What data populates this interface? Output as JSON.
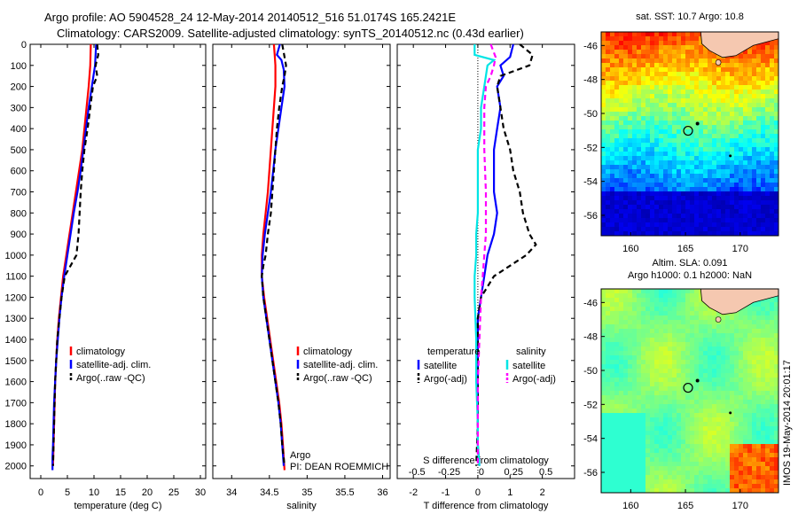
{
  "header": {
    "line1": "Argo profile: AO 5904528_24 12-May-2014 20140512_516 51.0174S 165.2421E",
    "line2": "Climatology: CARS2009. Satellite-adjusted climatology: synTS_20140512.nc (0.43d earlier)"
  },
  "colors": {
    "climatology": "#ff0000",
    "satellite": "#0000ff",
    "argo": "#000000",
    "cyan": "#00e5e5",
    "magenta": "#ff00ff"
  },
  "chart_data": [
    {
      "type": "line",
      "xlabel": "temperature (deg C)",
      "xlim": [
        -2,
        31
      ],
      "ylim": [
        2060,
        0
      ],
      "xticks": [
        0,
        5,
        10,
        15,
        20,
        25,
        30
      ],
      "yticks": [
        0,
        100,
        200,
        300,
        400,
        500,
        600,
        700,
        800,
        900,
        1000,
        1100,
        1200,
        1300,
        1400,
        1500,
        1600,
        1700,
        1800,
        1900,
        2000
      ],
      "legend": [
        "climatology",
        "satellite-adj. clim.",
        "Argo(..raw -QC)"
      ],
      "series": [
        {
          "name": "climatology",
          "color": "#ff0000",
          "dash": "",
          "points": [
            [
              9.4,
              0
            ],
            [
              9.3,
              100
            ],
            [
              9.0,
              200
            ],
            [
              8.6,
              300
            ],
            [
              8.2,
              400
            ],
            [
              7.8,
              500
            ],
            [
              7.2,
              600
            ],
            [
              6.6,
              700
            ],
            [
              6.0,
              800
            ],
            [
              5.4,
              900
            ],
            [
              4.8,
              1000
            ],
            [
              4.2,
              1100
            ],
            [
              3.8,
              1200
            ],
            [
              3.4,
              1300
            ],
            [
              3.1,
              1400
            ],
            [
              2.9,
              1500
            ],
            [
              2.7,
              1600
            ],
            [
              2.6,
              1700
            ],
            [
              2.5,
              1800
            ],
            [
              2.4,
              1900
            ],
            [
              2.3,
              2000
            ]
          ]
        },
        {
          "name": "satellite-adj. clim.",
          "color": "#0000ff",
          "dash": "",
          "points": [
            [
              10.4,
              0
            ],
            [
              10.2,
              100
            ],
            [
              9.6,
              200
            ],
            [
              9.0,
              300
            ],
            [
              8.5,
              400
            ],
            [
              8.0,
              500
            ],
            [
              7.5,
              600
            ],
            [
              6.9,
              700
            ],
            [
              6.2,
              800
            ],
            [
              5.6,
              900
            ],
            [
              5.0,
              1000
            ],
            [
              4.4,
              1100
            ],
            [
              3.9,
              1200
            ],
            [
              3.5,
              1300
            ],
            [
              3.2,
              1400
            ],
            [
              2.9,
              1500
            ],
            [
              2.7,
              1600
            ],
            [
              2.5,
              1700
            ],
            [
              2.4,
              1800
            ],
            [
              2.3,
              1900
            ],
            [
              2.2,
              1960
            ],
            [
              2.2,
              2020
            ]
          ]
        },
        {
          "name": "Argo(..raw -QC)",
          "color": "#000000",
          "dash": "6,4",
          "points": [
            [
              10.6,
              0
            ],
            [
              10.8,
              50
            ],
            [
              10.3,
              100
            ],
            [
              10.6,
              150
            ],
            [
              9.8,
              200
            ],
            [
              9.3,
              300
            ],
            [
              8.8,
              400
            ],
            [
              8.2,
              500
            ],
            [
              7.8,
              600
            ],
            [
              7.5,
              700
            ],
            [
              7.3,
              800
            ],
            [
              7.1,
              900
            ],
            [
              6.7,
              1000
            ],
            [
              5.6,
              1050
            ],
            [
              4.5,
              1100
            ],
            [
              3.9,
              1200
            ],
            [
              3.5,
              1300
            ],
            [
              3.1,
              1400
            ],
            [
              2.9,
              1500
            ],
            [
              2.7,
              1600
            ],
            [
              2.6,
              1700
            ],
            [
              2.5,
              1800
            ],
            [
              2.4,
              1900
            ],
            [
              2.3,
              2000
            ]
          ]
        }
      ]
    },
    {
      "type": "line",
      "xlabel": "salinity",
      "xlim": [
        33.75,
        36.1
      ],
      "ylim": [
        2060,
        0
      ],
      "xticks": [
        34,
        34.5,
        35,
        35.5,
        36
      ],
      "legend": [
        "climatology",
        "satellite-adj. clim.",
        "Argo(..raw -QC)"
      ],
      "annotation": [
        "Argo",
        "PI: DEAN ROEMMICH"
      ],
      "series": [
        {
          "name": "climatology",
          "color": "#ff0000",
          "dash": "",
          "points": [
            [
              34.56,
              0
            ],
            [
              34.57,
              50
            ],
            [
              34.58,
              100
            ],
            [
              34.58,
              200
            ],
            [
              34.56,
              300
            ],
            [
              34.54,
              400
            ],
            [
              34.52,
              500
            ],
            [
              34.5,
              600
            ],
            [
              34.48,
              700
            ],
            [
              34.45,
              800
            ],
            [
              34.42,
              900
            ],
            [
              34.4,
              1000
            ],
            [
              34.4,
              1100
            ],
            [
              34.43,
              1200
            ],
            [
              34.47,
              1300
            ],
            [
              34.51,
              1400
            ],
            [
              34.55,
              1500
            ],
            [
              34.59,
              1600
            ],
            [
              34.63,
              1700
            ],
            [
              34.66,
              1800
            ],
            [
              34.68,
              1900
            ],
            [
              34.7,
              2020
            ]
          ]
        },
        {
          "name": "satellite-adj. clim.",
          "color": "#0000ff",
          "dash": "",
          "points": [
            [
              34.64,
              0
            ],
            [
              34.6,
              50
            ],
            [
              34.66,
              75
            ],
            [
              34.69,
              120
            ],
            [
              34.7,
              200
            ],
            [
              34.66,
              300
            ],
            [
              34.62,
              400
            ],
            [
              34.58,
              500
            ],
            [
              34.55,
              600
            ],
            [
              34.52,
              700
            ],
            [
              34.48,
              800
            ],
            [
              34.44,
              900
            ],
            [
              34.41,
              1000
            ],
            [
              34.4,
              1100
            ],
            [
              34.42,
              1200
            ],
            [
              34.46,
              1300
            ],
            [
              34.5,
              1400
            ],
            [
              34.54,
              1500
            ],
            [
              34.58,
              1600
            ],
            [
              34.62,
              1700
            ],
            [
              34.65,
              1800
            ],
            [
              34.67,
              1900
            ],
            [
              34.69,
              2000
            ]
          ]
        },
        {
          "name": "Argo(..raw -QC)",
          "color": "#000000",
          "dash": "6,4",
          "points": [
            [
              34.67,
              0
            ],
            [
              34.7,
              60
            ],
            [
              34.72,
              100
            ],
            [
              34.7,
              150
            ],
            [
              34.67,
              200
            ],
            [
              34.63,
              300
            ],
            [
              34.6,
              400
            ],
            [
              34.58,
              500
            ],
            [
              34.56,
              600
            ],
            [
              34.54,
              700
            ],
            [
              34.52,
              800
            ],
            [
              34.48,
              900
            ],
            [
              34.45,
              1000
            ],
            [
              34.42,
              1050
            ],
            [
              34.4,
              1100
            ],
            [
              34.42,
              1200
            ],
            [
              34.46,
              1300
            ],
            [
              34.5,
              1400
            ],
            [
              34.54,
              1500
            ],
            [
              34.58,
              1600
            ],
            [
              34.62,
              1700
            ],
            [
              34.65,
              1800
            ],
            [
              34.67,
              1900
            ],
            [
              34.7,
              2000
            ]
          ]
        }
      ]
    },
    {
      "type": "line",
      "xlabel": "T difference from climatology",
      "secondary_xlabel": "S difference from climatology",
      "xlim": [
        -2.5,
        3
      ],
      "ylim": [
        2060,
        0
      ],
      "xticks": [
        -2,
        -1,
        0,
        1,
        2
      ],
      "xticklabels_top": [
        "-0.5",
        "-0.25",
        "0",
        "0.25",
        "0.5"
      ],
      "legend": {
        "temperature": "temperature",
        "salinity": "salinity",
        "entries": [
          "satellite",
          "Argo(-adj)",
          "satellite",
          "Argo(-adj)"
        ]
      },
      "series": [
        {
          "name": "satellite",
          "group": "temperature",
          "color": "#0000ff",
          "dash": "",
          "points": [
            [
              1.1,
              0
            ],
            [
              1.0,
              60
            ],
            [
              0.7,
              100
            ],
            [
              0.8,
              150
            ],
            [
              0.6,
              200
            ],
            [
              0.7,
              300
            ],
            [
              0.6,
              400
            ],
            [
              0.5,
              500
            ],
            [
              0.5,
              600
            ],
            [
              0.5,
              700
            ],
            [
              0.6,
              800
            ],
            [
              0.5,
              900
            ],
            [
              0.3,
              1000
            ],
            [
              0.2,
              1100
            ],
            [
              0.1,
              1200
            ],
            [
              0.0,
              1300
            ],
            [
              0.0,
              1400
            ],
            [
              0.0,
              1500
            ],
            [
              0.0,
              1600
            ],
            [
              0.0,
              1800
            ],
            [
              0.0,
              1900
            ],
            [
              0.05,
              2000
            ]
          ]
        },
        {
          "name": "Argo(-adj)",
          "group": "temperature",
          "color": "#000000",
          "dash": "6,4",
          "points": [
            [
              1.3,
              0
            ],
            [
              1.7,
              50
            ],
            [
              1.6,
              100
            ],
            [
              0.7,
              150
            ],
            [
              0.6,
              200
            ],
            [
              0.7,
              300
            ],
            [
              0.8,
              400
            ],
            [
              1.0,
              500
            ],
            [
              1.1,
              600
            ],
            [
              1.3,
              700
            ],
            [
              1.4,
              800
            ],
            [
              1.6,
              900
            ],
            [
              1.8,
              950
            ],
            [
              1.5,
              1000
            ],
            [
              0.5,
              1100
            ],
            [
              0.1,
              1200
            ],
            [
              0.0,
              1300
            ],
            [
              0.0,
              1500
            ],
            [
              0.0,
              1800
            ],
            [
              -0.05,
              2000
            ]
          ]
        },
        {
          "name": "satellite",
          "group": "salinity",
          "color": "#00e5e5",
          "dash": "",
          "points": [
            [
              -0.1,
              0
            ],
            [
              -0.1,
              50
            ],
            [
              0.5,
              75
            ],
            [
              0.3,
              100
            ],
            [
              0.2,
              200
            ],
            [
              0.1,
              300
            ],
            [
              0.1,
              400
            ],
            [
              0.0,
              500
            ],
            [
              0.0,
              600
            ],
            [
              0.0,
              700
            ],
            [
              0.0,
              800
            ],
            [
              -0.05,
              900
            ],
            [
              -0.05,
              1000
            ],
            [
              -0.1,
              1100
            ],
            [
              -0.1,
              1200
            ],
            [
              -0.05,
              1400
            ],
            [
              -0.05,
              1600
            ],
            [
              0.0,
              1800
            ],
            [
              0.0,
              1900
            ],
            [
              0.05,
              2000
            ]
          ]
        },
        {
          "name": "Argo(-adj)",
          "group": "salinity",
          "color": "#ff00ff",
          "dash": "6,4",
          "points": [
            [
              0.4,
              0
            ],
            [
              0.55,
              60
            ],
            [
              0.5,
              100
            ],
            [
              0.4,
              150
            ],
            [
              0.25,
              200
            ],
            [
              0.2,
              300
            ],
            [
              0.2,
              500
            ],
            [
              0.25,
              700
            ],
            [
              0.25,
              900
            ],
            [
              0.2,
              1000
            ],
            [
              0.15,
              1100
            ],
            [
              0.1,
              1200
            ],
            [
              0.05,
              1400
            ],
            [
              0.0,
              1600
            ],
            [
              0.0,
              1800
            ],
            [
              0.0,
              2000
            ]
          ]
        }
      ]
    }
  ],
  "maps": [
    {
      "title": "sat. SST: 10.7 Argo: 10.8",
      "type": "sst",
      "xticks": [
        160,
        165,
        170
      ],
      "yticks": [
        -46,
        -48,
        -50,
        -52,
        -54,
        -56
      ]
    },
    {
      "title1": "Altim. SLA: 0.091",
      "title2": "Argo h1000: 0.1 h2000: NaN",
      "type": "sla",
      "xticks": [
        160,
        165,
        170
      ],
      "yticks": [
        -46,
        -48,
        -50,
        -52,
        -54,
        -56
      ]
    }
  ],
  "footer": {
    "stamp": "IMOS 19-May-2014 20:01:17"
  }
}
